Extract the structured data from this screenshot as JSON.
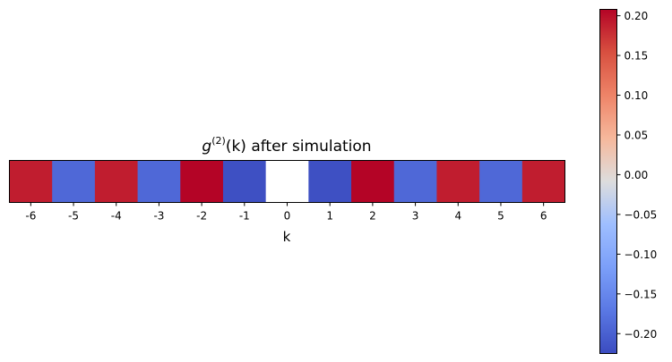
{
  "chart_data": {
    "type": "heatmap",
    "title_base": "g",
    "title_sup": "(2)",
    "title_arg": "(k)",
    "title_rest": " after simulation",
    "xlabel": "k",
    "ylabel": "",
    "x": [
      "-6",
      "-5",
      "-4",
      "-3",
      "-2",
      "-1",
      "0",
      "1",
      "2",
      "3",
      "4",
      "5",
      "6"
    ],
    "values": [
      0.19,
      -0.19,
      0.19,
      -0.19,
      0.21,
      -0.22,
      null,
      -0.22,
      0.21,
      -0.19,
      0.19,
      -0.19,
      0.19
    ],
    "colormap": "coolwarm",
    "colorbar": {
      "vmin": -0.225,
      "vmax": 0.208,
      "ticks": [
        "0.20",
        "0.15",
        "0.10",
        "0.05",
        "0.00",
        "−0.05",
        "−0.10",
        "−0.15",
        "−0.20"
      ],
      "tick_values": [
        0.2,
        0.15,
        0.1,
        0.05,
        0.0,
        -0.05,
        -0.1,
        -0.15,
        -0.2
      ]
    },
    "grid": false
  }
}
